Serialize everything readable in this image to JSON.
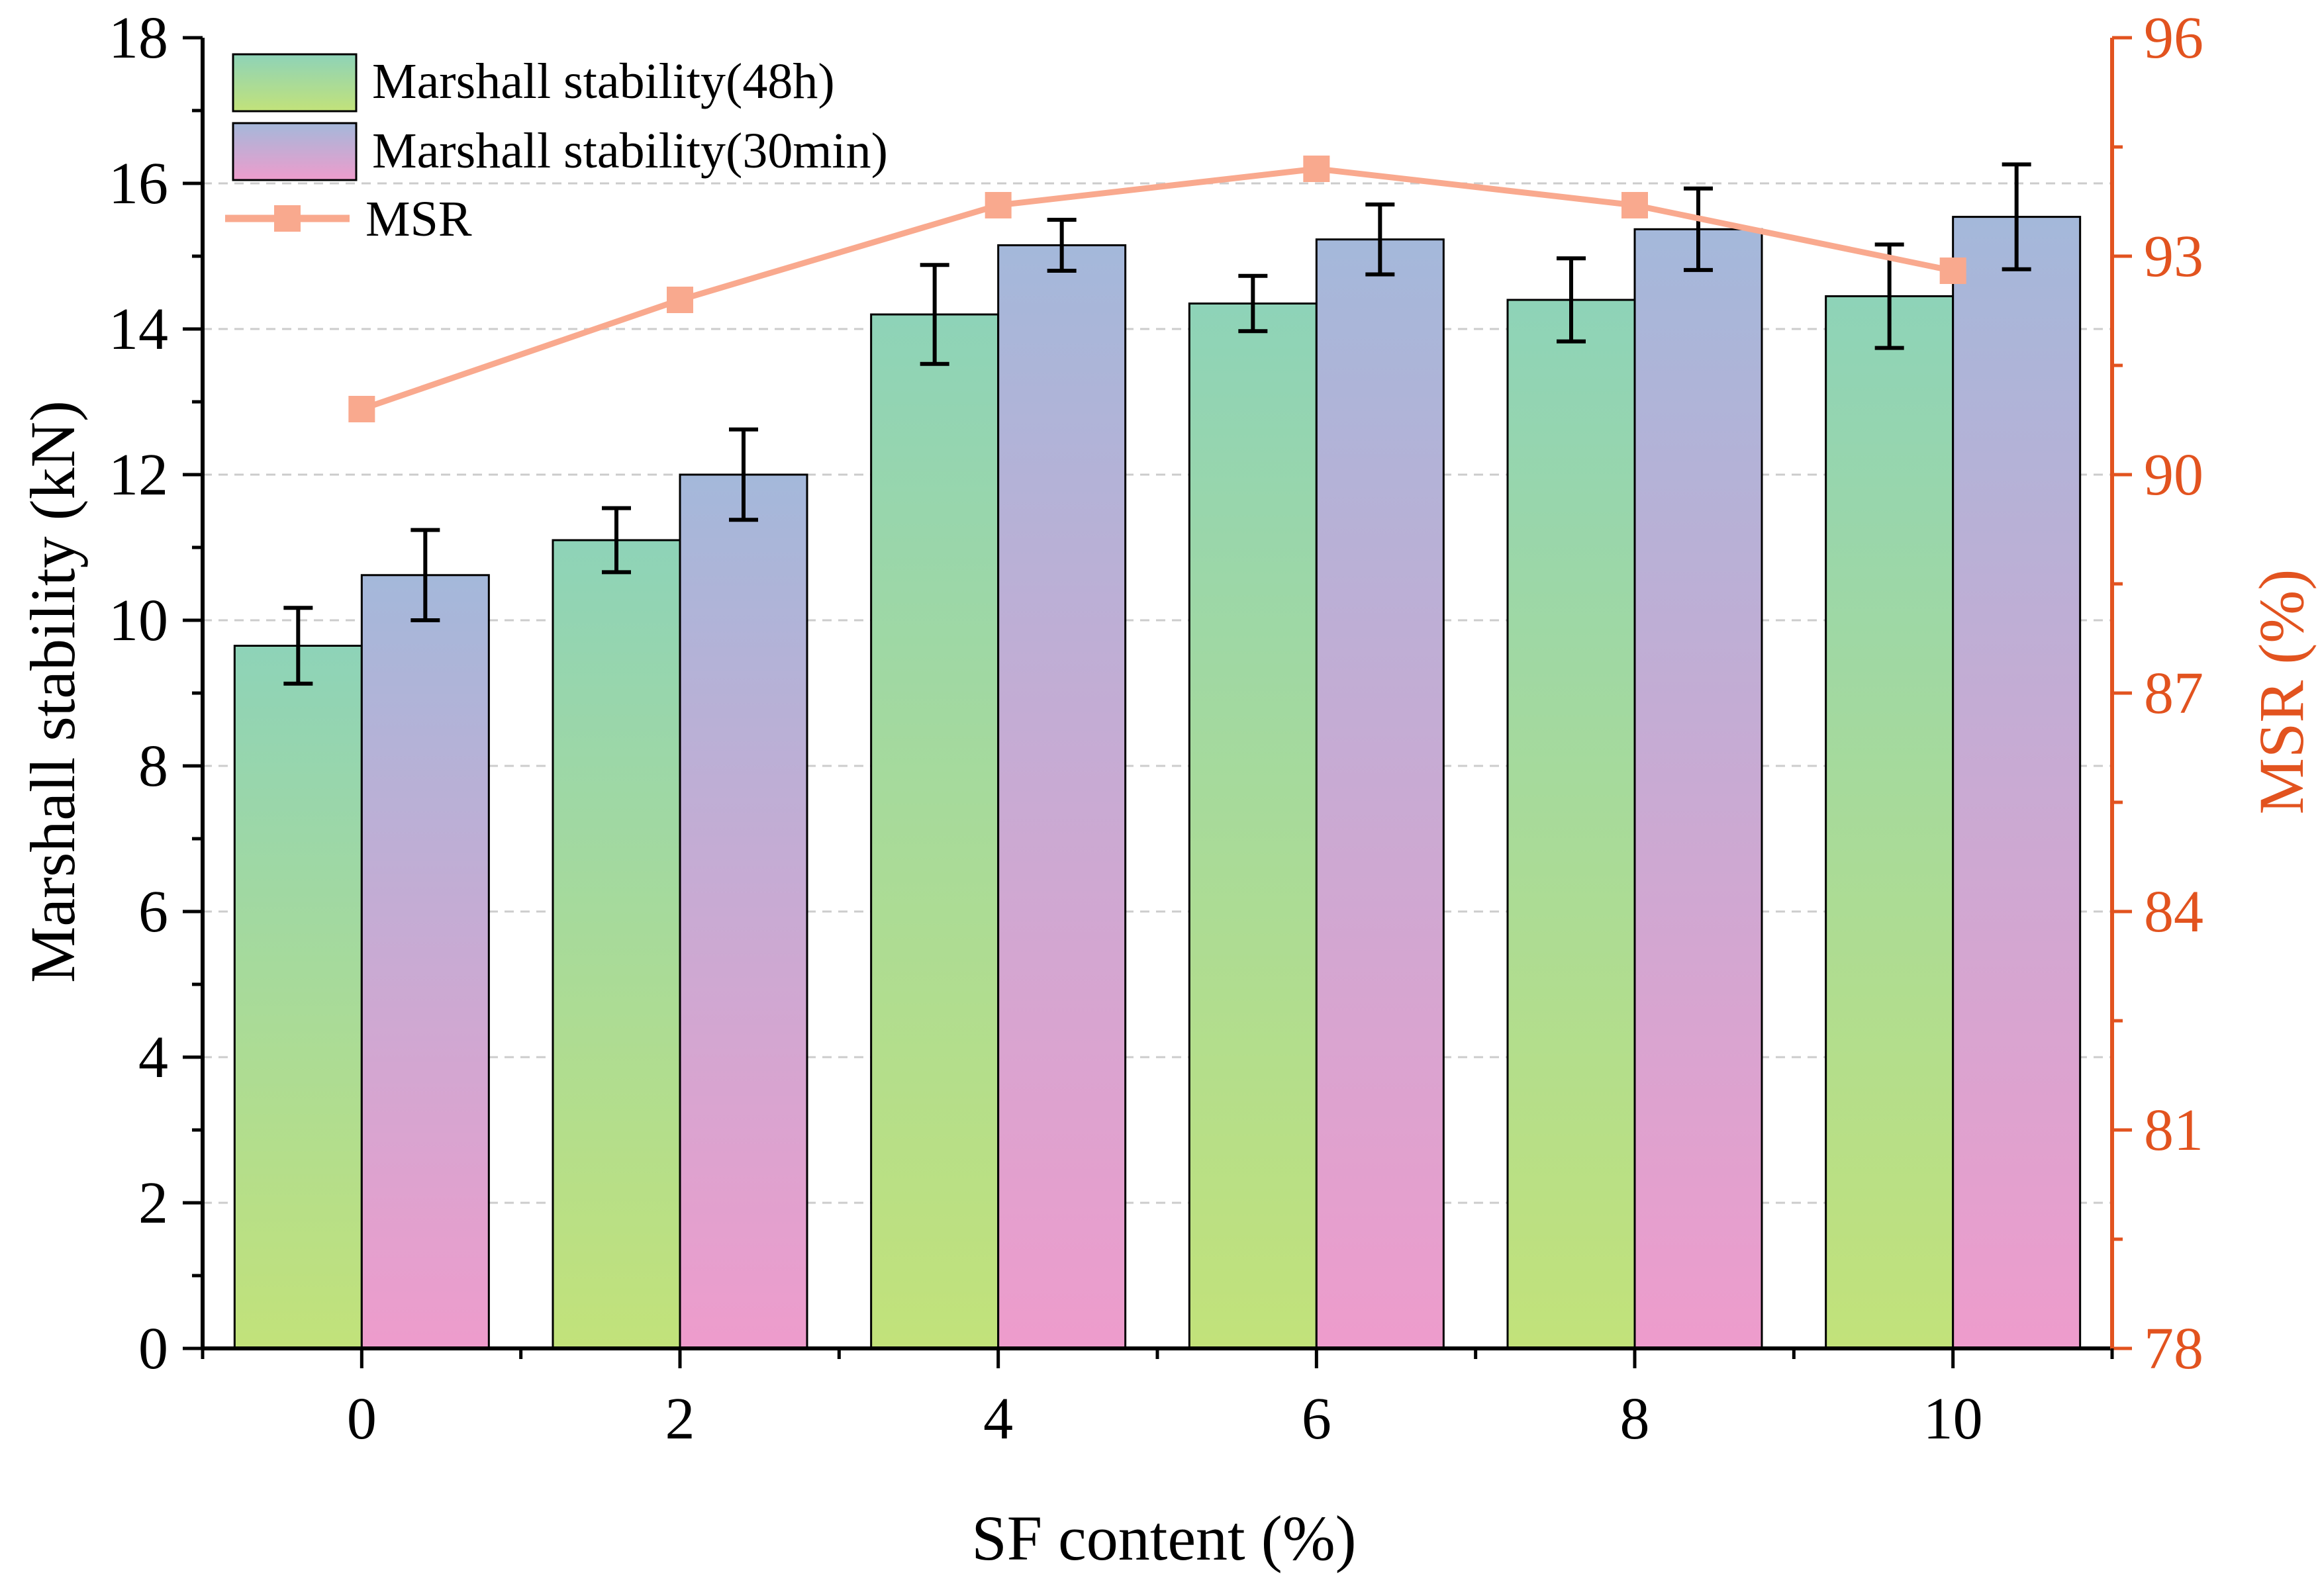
{
  "chart_data": {
    "type": "bar",
    "categories": [
      "0",
      "2",
      "4",
      "6",
      "8",
      "10"
    ],
    "xlabel": "SF content (%)",
    "ylabel": "Marshall stability (kN)",
    "y2label": "MSR (%)",
    "ylim": [
      0,
      18
    ],
    "y2lim": [
      78,
      96
    ],
    "yticks": [
      "0",
      "2",
      "4",
      "6",
      "8",
      "10",
      "12",
      "14",
      "16",
      "18"
    ],
    "y2ticks": [
      "78",
      "81",
      "84",
      "87",
      "90",
      "93",
      "96"
    ],
    "grid": "horizontal dashed",
    "legend_position": "top-left",
    "series": [
      {
        "name": "Marshall stability(48h)",
        "kind": "bar",
        "axis": "left",
        "values": [
          9.65,
          11.1,
          14.2,
          14.35,
          14.4,
          14.45
        ],
        "errors": [
          0.52,
          0.44,
          0.68,
          0.38,
          0.57,
          0.71
        ],
        "gradient": [
          "#8ed3b8",
          "#c2e27a"
        ]
      },
      {
        "name": "Marshall stability(30min)",
        "kind": "bar",
        "axis": "left",
        "values": [
          10.62,
          12.0,
          15.15,
          15.23,
          15.37,
          15.54
        ],
        "errors": [
          0.62,
          0.62,
          0.35,
          0.48,
          0.56,
          0.72
        ],
        "gradient": [
          "#a4b8da",
          "#ee9ccc"
        ]
      },
      {
        "name": "MSR",
        "kind": "line",
        "axis": "right",
        "values": [
          90.9,
          92.4,
          93.7,
          94.2,
          93.7,
          92.8
        ],
        "color": "#f9a98e"
      }
    ],
    "colors": {
      "axis": "#000000",
      "right_axis": "#e2531f",
      "grid": "#cccccc"
    }
  }
}
